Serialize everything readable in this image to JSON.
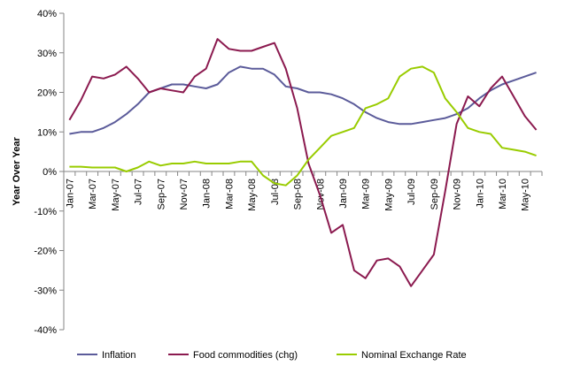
{
  "chart_data": {
    "type": "line",
    "title": "",
    "xlabel": "",
    "ylabel": "Year Over Year",
    "ylim": [
      -40,
      40
    ],
    "y_ticks": [
      "40%",
      "30%",
      "20%",
      "10%",
      "0%",
      "-10%",
      "-20%",
      "-30%",
      "-40%"
    ],
    "x_tick_labels": [
      "Jan-07",
      "Mar-07",
      "May-07",
      "Jul-07",
      "Sep-07",
      "Nov-07",
      "Jan-08",
      "Mar-08",
      "May-08",
      "Jul-08",
      "Sep-08",
      "Nov-08",
      "Jan-09",
      "Mar-09",
      "May-09",
      "Jul-09",
      "Sep-09",
      "Nov-09",
      "Jan-10",
      "Mar-10",
      "May-10"
    ],
    "grid": false,
    "legend_position": "bottom",
    "x": [
      "Jan-07",
      "Feb-07",
      "Mar-07",
      "Apr-07",
      "May-07",
      "Jun-07",
      "Jul-07",
      "Aug-07",
      "Sep-07",
      "Oct-07",
      "Nov-07",
      "Dec-07",
      "Jan-08",
      "Feb-08",
      "Mar-08",
      "Apr-08",
      "May-08",
      "Jun-08",
      "Jul-08",
      "Aug-08",
      "Sep-08",
      "Oct-08",
      "Nov-08",
      "Dec-08",
      "Jan-09",
      "Feb-09",
      "Mar-09",
      "Apr-09",
      "May-09",
      "Jun-09",
      "Jul-09",
      "Aug-09",
      "Sep-09",
      "Oct-09",
      "Nov-09",
      "Dec-09",
      "Jan-10",
      "Feb-10",
      "Mar-10",
      "Apr-10",
      "May-10",
      "Jun-10"
    ],
    "series": [
      {
        "name": "Inflation",
        "color": "#5b5b9a",
        "values": [
          9.5,
          10,
          10,
          11,
          12.5,
          14.5,
          17,
          20,
          21,
          22,
          22,
          21.5,
          21,
          22,
          25,
          26.5,
          26,
          26,
          24.5,
          21.5,
          21,
          20,
          20,
          19.5,
          18.5,
          17,
          15,
          13.5,
          12.5,
          12,
          12,
          12.5,
          13,
          13.5,
          14.5,
          16,
          18.5,
          20.5,
          22,
          23,
          24,
          25
        ]
      },
      {
        "name": "Food commodities (chg)",
        "color": "#8b1a4f",
        "values": [
          13,
          18,
          24,
          23.5,
          24.5,
          26.5,
          23.5,
          20,
          21,
          20.5,
          20,
          24,
          26,
          33.5,
          31,
          30.5,
          30.5,
          31.5,
          32.5,
          26,
          16,
          2,
          -6,
          -15.5,
          -13.5,
          -25,
          -27,
          -22.5,
          -22,
          -24,
          -29,
          -25,
          -21,
          -5,
          12,
          19,
          16.5,
          21,
          24,
          19,
          14,
          10.5
        ]
      },
      {
        "name": "Nominal Exchange Rate",
        "color": "#99cc00",
        "values": [
          1.2,
          1.2,
          1,
          1,
          1,
          0,
          1,
          2.5,
          1.5,
          2,
          2,
          2.5,
          2,
          2,
          2,
          2.5,
          2.5,
          -1,
          -3,
          -3.5,
          -1,
          3,
          6,
          9,
          10,
          11,
          16,
          17,
          18.5,
          24,
          26,
          26.5,
          25,
          18.5,
          15,
          11,
          10,
          9.5,
          6,
          5.5,
          5,
          4
        ]
      }
    ]
  }
}
